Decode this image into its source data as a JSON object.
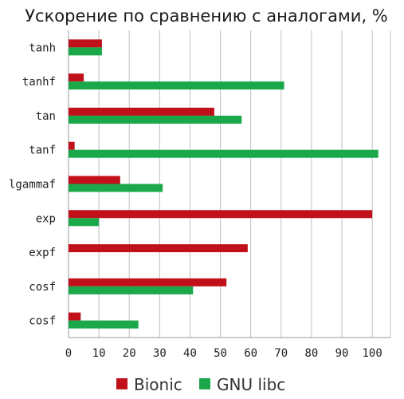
{
  "chart_data": {
    "type": "bar",
    "orientation": "horizontal",
    "title": "Ускорение по сравнению с аналогами, %",
    "categories": [
      "tanh",
      "tanhf",
      "tan",
      "tanf",
      "lgammaf",
      "exp",
      "expf",
      "cosf",
      "cosf"
    ],
    "series": [
      {
        "name": "Bionic",
        "color": "#c0111a",
        "values": [
          11,
          5,
          48,
          2,
          17,
          100,
          59,
          52,
          4
        ]
      },
      {
        "name": "GNU libc",
        "color": "#1aa84a",
        "values": [
          11,
          71,
          57,
          102,
          31,
          10,
          0,
          41,
          23
        ]
      }
    ],
    "xticks": [
      0,
      10,
      20,
      30,
      40,
      50,
      60,
      70,
      80,
      90,
      100
    ],
    "xlim": [
      0,
      106
    ],
    "grid": "vertical",
    "legend_position": "bottom"
  }
}
